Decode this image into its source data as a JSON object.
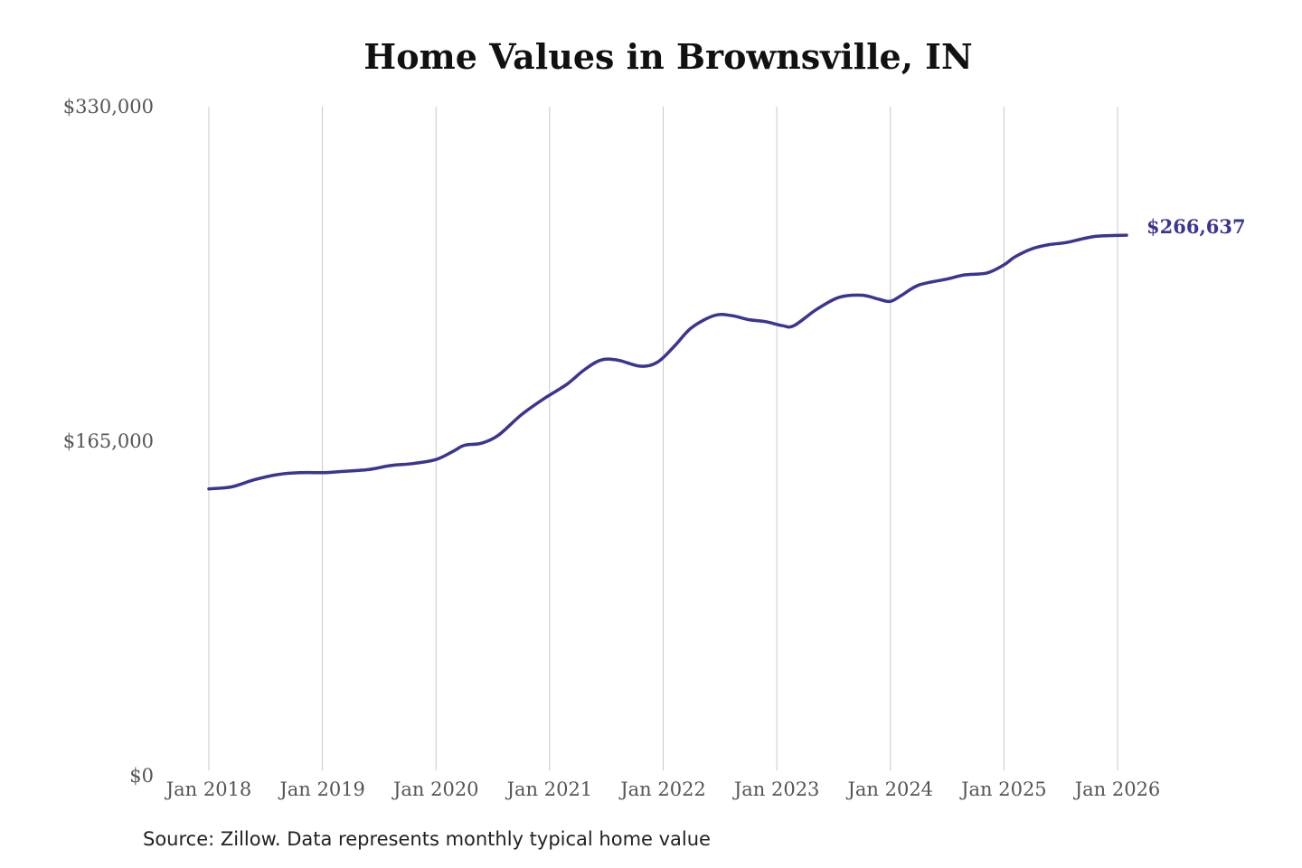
{
  "chart_data": {
    "type": "line",
    "title": "Home Values in Brownsville, IN",
    "xlabel": "",
    "ylabel": "",
    "ylim": [
      0,
      330000
    ],
    "y_ticks": [
      {
        "value": 0,
        "label": "$0"
      },
      {
        "value": 165000,
        "label": "$165,000"
      },
      {
        "value": 330000,
        "label": "$330,000"
      }
    ],
    "x_ticks": [
      {
        "value": 2018,
        "label": "Jan 2018"
      },
      {
        "value": 2019,
        "label": "Jan 2019"
      },
      {
        "value": 2020,
        "label": "Jan 2020"
      },
      {
        "value": 2021,
        "label": "Jan 2021"
      },
      {
        "value": 2022,
        "label": "Jan 2022"
      },
      {
        "value": 2023,
        "label": "Jan 2023"
      },
      {
        "value": 2024,
        "label": "Jan 2024"
      },
      {
        "value": 2025,
        "label": "Jan 2025"
      },
      {
        "value": 2026,
        "label": "Jan 2026"
      }
    ],
    "xlim": [
      2018,
      2026.1
    ],
    "grid": {
      "vertical": true,
      "horizontal": false
    },
    "series": [
      {
        "color": "#3a3591",
        "x": [
          2018.0,
          2018.2,
          2018.4,
          2018.6,
          2018.8,
          2019.0,
          2019.15,
          2019.4,
          2019.6,
          2019.8,
          2020.0,
          2020.15,
          2020.25,
          2020.4,
          2020.55,
          2020.75,
          2020.95,
          2021.15,
          2021.3,
          2021.45,
          2021.6,
          2021.8,
          2021.95,
          2022.1,
          2022.25,
          2022.45,
          2022.6,
          2022.75,
          2022.9,
          2023.05,
          2023.15,
          2023.35,
          2023.55,
          2023.75,
          2023.9,
          2024.0,
          2024.1,
          2024.25,
          2024.5,
          2024.65,
          2024.85,
          2025.0,
          2025.1,
          2025.25,
          2025.4,
          2025.55,
          2025.8,
          2026.08
        ],
        "y": [
          141500,
          142500,
          146000,
          148500,
          149500,
          149500,
          150000,
          151000,
          153000,
          154000,
          156000,
          160000,
          163000,
          164000,
          168000,
          178000,
          186000,
          193000,
          200000,
          205000,
          205000,
          202000,
          204000,
          212000,
          221000,
          227000,
          227000,
          225000,
          224000,
          222000,
          222000,
          230000,
          236000,
          237000,
          235000,
          234000,
          237000,
          242000,
          245000,
          247000,
          248000,
          252000,
          256000,
          260000,
          262000,
          263000,
          266000,
          266637
        ]
      }
    ],
    "annotations": [
      {
        "x": 2026.08,
        "y": 266637,
        "text": "$266,637"
      }
    ],
    "source": "Source: Zillow. Data represents monthly typical home value"
  }
}
